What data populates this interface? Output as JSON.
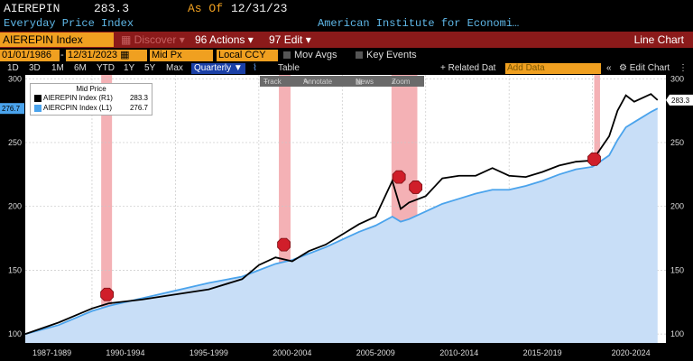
{
  "header": {
    "ticker": "AIEREPIN",
    "last_value": "283.3",
    "as_of_label": "As Of",
    "as_of_date": "12/31/23",
    "description": "Everyday Price Index",
    "source": "American Institute for Economi…"
  },
  "toolbar_red": {
    "security": "AIEREPIN Index",
    "discover": "Discover",
    "actions": "Actions",
    "edit": "Edit",
    "chart_type": "Line Chart"
  },
  "controls": {
    "start_date": "01/01/1986",
    "end_date": "12/31/2023",
    "field": "Mid Px",
    "currency": "Local CCY",
    "mov_avgs": "Mov Avgs",
    "key_events": "Key Events",
    "periods": [
      "1D",
      "3D",
      "1M",
      "6M",
      "YTD",
      "1Y",
      "5Y",
      "Max"
    ],
    "frequency": "Quarterly",
    "table": "Table",
    "related_data": "+ Related Dat",
    "add_data": "Add Data",
    "edit_chart": "Edit Chart"
  },
  "chart_toolbar": {
    "track": "Track",
    "annotate": "Annotate",
    "news": "News",
    "zoom": "Zoom"
  },
  "colors": {
    "epi_line": "#000000",
    "cpi_line": "#4aa3ec",
    "cpi_fill": "#c8def7",
    "recession": "#f2a3a8",
    "accent": "#f0a020",
    "bar_red": "#8b1a1a"
  },
  "chart_data": {
    "type": "area",
    "title": "Mid Price",
    "legend_placement": "top-left",
    "ylim": [
      93,
      303
    ],
    "yticks_left": [
      "300",
      "250",
      "200",
      "150",
      "100"
    ],
    "yticks_right": [
      "300",
      "250",
      "200",
      "150",
      "100"
    ],
    "x_tick_labels": [
      "1987-1989",
      "1990-1994",
      "1995-1999",
      "2000-2004",
      "2005-2009",
      "2010-2014",
      "2015-2019",
      "2020-2024"
    ],
    "last_labels": {
      "cpi": "276.7",
      "epi": "283.3"
    },
    "series": [
      {
        "name": "AIEREPIN Index (R1)",
        "last": "283.3",
        "x": [
          1986,
          1988,
          1990,
          1991,
          1993,
          1995,
          1997,
          1999,
          2000,
          2001,
          2002,
          2003,
          2004,
          2005,
          2006,
          2007,
          2008,
          2008.5,
          2009,
          2010,
          2011,
          2012,
          2013,
          2014,
          2015,
          2016,
          2017,
          2018,
          2019,
          2020,
          2021,
          2021.5,
          2022,
          2022.5,
          2023,
          2023.5,
          2023.9
        ],
        "values": [
          100,
          109,
          120,
          124,
          127,
          131,
          135,
          143,
          154,
          160,
          157,
          165,
          170,
          178,
          186,
          192,
          220,
          198,
          203,
          208,
          222,
          224,
          224,
          230,
          224,
          223,
          227,
          232,
          235,
          236,
          255,
          275,
          287,
          282,
          285,
          288,
          283.3
        ]
      },
      {
        "name": "AIERCPIN Index (L1)",
        "last": "276.7",
        "x": [
          1986,
          1988,
          1990,
          1991,
          1993,
          1995,
          1997,
          1999,
          2000,
          2001,
          2002,
          2003,
          2004,
          2005,
          2006,
          2007,
          2008,
          2008.5,
          2009,
          2010,
          2011,
          2012,
          2013,
          2014,
          2015,
          2016,
          2017,
          2018,
          2019,
          2020,
          2021,
          2021.5,
          2022,
          2022.5,
          2023,
          2023.5,
          2023.9
        ],
        "values": [
          100,
          107,
          118,
          122,
          128,
          134,
          140,
          145,
          150,
          155,
          158,
          163,
          168,
          174,
          180,
          185,
          192,
          188,
          190,
          196,
          202,
          206,
          210,
          213,
          213,
          216,
          220,
          225,
          229,
          231,
          240,
          252,
          262,
          266,
          270,
          274,
          276.7
        ]
      }
    ],
    "recessions": [
      {
        "start": 1990.55,
        "end": 1991.2
      },
      {
        "start": 2001.2,
        "end": 2001.9
      },
      {
        "start": 2007.95,
        "end": 2009.5
      },
      {
        "start": 2020.1,
        "end": 2020.45
      }
    ],
    "event_markers": [
      {
        "x": 1990.9,
        "y": 131
      },
      {
        "x": 2001.5,
        "y": 170
      },
      {
        "x": 2008.4,
        "y": 223
      },
      {
        "x": 2009.4,
        "y": 215
      },
      {
        "x": 2020.1,
        "y": 237
      }
    ]
  }
}
